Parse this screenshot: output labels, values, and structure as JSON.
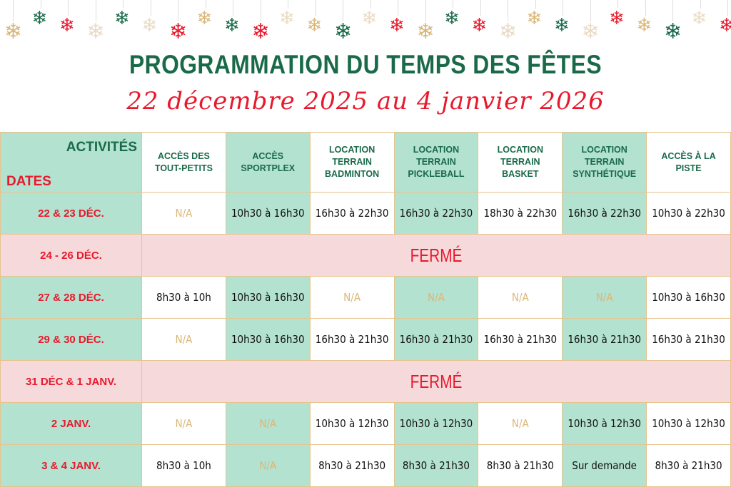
{
  "header": {
    "title": "PROGRAMMATION DU TEMPS DES FÊTES",
    "subtitle": "22 décembre 2025 au 4 janvier 2026"
  },
  "decoration": {
    "icon": "snowflake-icon",
    "colors": [
      "#1a6a4a",
      "#e8192c",
      "#d9b77a",
      "#eadbc4"
    ]
  },
  "colors": {
    "green": "#1a6a4a",
    "red": "#e8192c",
    "mint": "#b3e2d0",
    "pink": "#f6d9db",
    "border": "#e6c48f",
    "na": "#d9b77a"
  },
  "table": {
    "corner": {
      "activities": "ACTIVITÉS",
      "dates": "DATES"
    },
    "columns": [
      "ACCÈS DES TOUT-PETITS",
      "ACCÈS SPORTPLEX",
      "LOCATION TERRAIN BADMINTON",
      "LOCATION TERRAIN PICKLEBALL",
      "LOCATION TERRAIN BASKET",
      "LOCATION TERRAIN SYNTHÉTIQUE",
      "ACCÈS À LA PISTE"
    ],
    "rows": [
      {
        "date": "22  & 23 DÉC.",
        "cells": [
          "N/A",
          "10h30 à 16h30",
          "16h30 à 22h30",
          "16h30 à 22h30",
          "18h30 à 22h30",
          "16h30 à 22h30",
          "10h30 à 22h30"
        ]
      },
      {
        "date": "24 - 26 DÉC.",
        "closed": "FERMÉ"
      },
      {
        "date": "27 & 28 DÉC.",
        "cells": [
          "8h30 à 10h",
          "10h30 à 16h30",
          "N/A",
          "N/A",
          "N/A",
          "N/A",
          "10h30 à 16h30"
        ]
      },
      {
        "date": "29 & 30 DÉC.",
        "cells": [
          "N/A",
          "10h30 à 16h30",
          "16h30 à 21h30",
          "16h30 à 21h30",
          "16h30 à 21h30",
          "16h30 à 21h30",
          "16h30 à 21h30"
        ]
      },
      {
        "date": "31 DÉC & 1 JANV.",
        "closed": "FERMÉ"
      },
      {
        "date": "2 JANV.",
        "cells": [
          "N/A",
          "N/A",
          "10h30 à 12h30",
          "10h30 à 12h30",
          "N/A",
          "10h30 à 12h30",
          "10h30 à 12h30"
        ]
      },
      {
        "date": "3 & 4 JANV.",
        "cells": [
          "8h30 à 10h",
          "N/A",
          "8h30 à 21h30",
          "8h30 à 21h30",
          "8h30 à 21h30",
          "Sur demande",
          "8h30 à 21h30"
        ]
      }
    ]
  }
}
